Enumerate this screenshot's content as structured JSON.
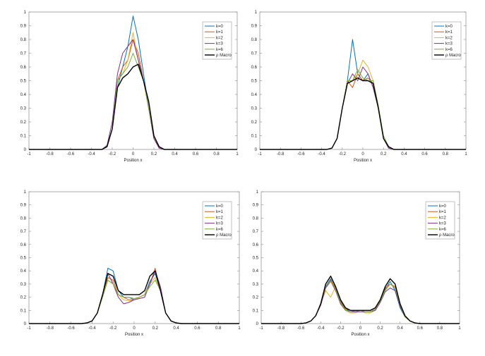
{
  "chart_data": [
    {
      "type": "line",
      "xlabel": "Position x",
      "ylabel": "",
      "xlim": [
        -1,
        1
      ],
      "ylim": [
        0,
        1
      ],
      "xticks": [
        -1,
        -0.8,
        -0.6,
        -0.4,
        -0.2,
        0,
        0.2,
        0.4,
        0.6,
        0.8,
        1
      ],
      "yticks": [
        0,
        0.1,
        0.2,
        0.3,
        0.4,
        0.5,
        0.6,
        0.7,
        0.8,
        0.9,
        1
      ],
      "legend": "top-right",
      "x": [
        -0.3,
        -0.25,
        -0.2,
        -0.15,
        -0.1,
        -0.05,
        0,
        0.05,
        0.1,
        0.15,
        0.2,
        0.25,
        0.3
      ],
      "series": [
        {
          "name": "k=0",
          "color": "#0072BD",
          "values": [
            0,
            0.02,
            0.15,
            0.45,
            0.6,
            0.75,
            0.97,
            0.8,
            0.55,
            0.3,
            0.08,
            0.01,
            0
          ]
        },
        {
          "name": "k=1",
          "color": "#D95319",
          "values": [
            0,
            0.02,
            0.15,
            0.5,
            0.6,
            0.65,
            0.8,
            0.7,
            0.5,
            0.3,
            0.08,
            0.01,
            0
          ]
        },
        {
          "name": "k=2",
          "color": "#EDB120",
          "values": [
            0,
            0.02,
            0.15,
            0.5,
            0.55,
            0.65,
            0.85,
            0.65,
            0.5,
            0.3,
            0.08,
            0.01,
            0
          ]
        },
        {
          "name": "k=3",
          "color": "#7E2F8E",
          "values": [
            0,
            0.03,
            0.2,
            0.55,
            0.7,
            0.75,
            0.8,
            0.65,
            0.5,
            0.3,
            0.08,
            0.01,
            0
          ]
        },
        {
          "name": "k=6",
          "color": "#77AC30",
          "values": [
            0,
            0.02,
            0.15,
            0.5,
            0.55,
            0.6,
            0.7,
            0.6,
            0.5,
            0.3,
            0.1,
            0.02,
            0
          ]
        },
        {
          "name": "ρ Macro",
          "color": "#000000",
          "values": [
            0,
            0.02,
            0.15,
            0.45,
            0.52,
            0.55,
            0.6,
            0.62,
            0.5,
            0.35,
            0.1,
            0.02,
            0
          ]
        }
      ]
    },
    {
      "type": "line",
      "xlabel": "Position x",
      "ylabel": "",
      "xlim": [
        -1,
        1
      ],
      "ylim": [
        0,
        1
      ],
      "xticks": [
        -1,
        -0.8,
        -0.6,
        -0.4,
        -0.2,
        0,
        0.2,
        0.4,
        0.6,
        0.8,
        1
      ],
      "yticks": [
        0,
        0.1,
        0.2,
        0.3,
        0.4,
        0.5,
        0.6,
        0.7,
        0.8,
        0.9,
        1
      ],
      "legend": "top-right",
      "x": [
        -0.35,
        -0.3,
        -0.25,
        -0.2,
        -0.15,
        -0.1,
        -0.05,
        0,
        0.05,
        0.1,
        0.15,
        0.2,
        0.25,
        0.3,
        0.35
      ],
      "series": [
        {
          "name": "k=0",
          "color": "#0072BD",
          "values": [
            0,
            0.01,
            0.08,
            0.3,
            0.5,
            0.8,
            0.55,
            0.5,
            0.55,
            0.45,
            0.3,
            0.08,
            0.01,
            0,
            0
          ]
        },
        {
          "name": "k=1",
          "color": "#D95319",
          "values": [
            0,
            0.01,
            0.08,
            0.3,
            0.5,
            0.45,
            0.55,
            0.5,
            0.52,
            0.48,
            0.3,
            0.08,
            0.01,
            0,
            0
          ]
        },
        {
          "name": "k=2",
          "color": "#EDB120",
          "values": [
            0,
            0.01,
            0.08,
            0.3,
            0.48,
            0.5,
            0.55,
            0.65,
            0.6,
            0.5,
            0.3,
            0.08,
            0.01,
            0,
            0
          ]
        },
        {
          "name": "k=3",
          "color": "#7E2F8E",
          "values": [
            0,
            0.01,
            0.08,
            0.3,
            0.48,
            0.55,
            0.5,
            0.6,
            0.55,
            0.45,
            0.3,
            0.08,
            0.01,
            0,
            0
          ]
        },
        {
          "name": "k=6",
          "color": "#77AC30",
          "values": [
            0,
            0.01,
            0.08,
            0.3,
            0.5,
            0.5,
            0.58,
            0.52,
            0.5,
            0.5,
            0.32,
            0.1,
            0.02,
            0,
            0
          ]
        },
        {
          "name": "ρ Macro",
          "color": "#000000",
          "values": [
            0,
            0.01,
            0.08,
            0.3,
            0.48,
            0.5,
            0.52,
            0.5,
            0.5,
            0.48,
            0.3,
            0.08,
            0.02,
            0,
            0
          ]
        }
      ]
    },
    {
      "type": "line",
      "xlabel": "Position x",
      "ylabel": "",
      "xlim": [
        -1,
        1
      ],
      "ylim": [
        0,
        1
      ],
      "xticks": [
        -1,
        -0.8,
        -0.6,
        -0.4,
        -0.2,
        0,
        0.2,
        0.4,
        0.6,
        0.8,
        1
      ],
      "yticks": [
        0,
        0.1,
        0.2,
        0.3,
        0.4,
        0.5,
        0.6,
        0.7,
        0.8,
        0.9,
        1
      ],
      "legend": "top-right",
      "x": [
        -0.5,
        -0.45,
        -0.4,
        -0.35,
        -0.3,
        -0.25,
        -0.2,
        -0.15,
        -0.1,
        -0.05,
        0,
        0.05,
        0.1,
        0.15,
        0.2,
        0.25,
        0.3,
        0.35,
        0.4,
        0.45,
        0.5
      ],
      "series": [
        {
          "name": "k=0",
          "color": "#0072BD",
          "values": [
            0,
            0.005,
            0.02,
            0.08,
            0.22,
            0.42,
            0.4,
            0.25,
            0.2,
            0.2,
            0.18,
            0.2,
            0.22,
            0.32,
            0.38,
            0.25,
            0.08,
            0.02,
            0.005,
            0,
            0
          ]
        },
        {
          "name": "k=1",
          "color": "#D95319",
          "values": [
            0,
            0.005,
            0.02,
            0.08,
            0.22,
            0.35,
            0.33,
            0.22,
            0.2,
            0.18,
            0.18,
            0.2,
            0.22,
            0.3,
            0.42,
            0.25,
            0.08,
            0.02,
            0.005,
            0,
            0
          ]
        },
        {
          "name": "k=2",
          "color": "#EDB120",
          "values": [
            0,
            0.005,
            0.02,
            0.08,
            0.22,
            0.33,
            0.3,
            0.22,
            0.18,
            0.17,
            0.18,
            0.2,
            0.22,
            0.3,
            0.35,
            0.25,
            0.08,
            0.02,
            0.005,
            0,
            0
          ]
        },
        {
          "name": "k=3",
          "color": "#7E2F8E",
          "values": [
            0,
            0.005,
            0.02,
            0.08,
            0.22,
            0.38,
            0.3,
            0.2,
            0.15,
            0.16,
            0.18,
            0.19,
            0.2,
            0.3,
            0.4,
            0.28,
            0.08,
            0.02,
            0.005,
            0,
            0
          ]
        },
        {
          "name": "k=6",
          "color": "#77AC30",
          "values": [
            0,
            0.005,
            0.02,
            0.08,
            0.2,
            0.33,
            0.3,
            0.22,
            0.2,
            0.2,
            0.19,
            0.2,
            0.22,
            0.28,
            0.33,
            0.25,
            0.08,
            0.02,
            0.005,
            0,
            0
          ]
        },
        {
          "name": "ρ Macro",
          "color": "#000000",
          "values": [
            0,
            0.005,
            0.02,
            0.08,
            0.22,
            0.38,
            0.36,
            0.25,
            0.22,
            0.22,
            0.22,
            0.22,
            0.25,
            0.36,
            0.4,
            0.25,
            0.08,
            0.02,
            0.005,
            0,
            0
          ]
        }
      ]
    },
    {
      "type": "line",
      "xlabel": "Position x",
      "ylabel": "",
      "xlim": [
        -1,
        1
      ],
      "ylim": [
        0,
        1
      ],
      "xticks": [
        -1,
        -0.8,
        -0.6,
        -0.4,
        -0.2,
        0,
        0.2,
        0.4,
        0.6,
        0.8,
        1
      ],
      "yticks": [
        0,
        0.1,
        0.2,
        0.3,
        0.4,
        0.5,
        0.6,
        0.7,
        0.8,
        0.9,
        1
      ],
      "legend": "top-right",
      "x": [
        -0.6,
        -0.55,
        -0.5,
        -0.45,
        -0.4,
        -0.35,
        -0.3,
        -0.25,
        -0.2,
        -0.15,
        -0.1,
        -0.05,
        0,
        0.05,
        0.1,
        0.15,
        0.2,
        0.25,
        0.3,
        0.35,
        0.4,
        0.45,
        0.5,
        0.55,
        0.6
      ],
      "series": [
        {
          "name": "k=0",
          "color": "#0072BD",
          "values": [
            0,
            0.005,
            0.02,
            0.06,
            0.15,
            0.28,
            0.34,
            0.26,
            0.16,
            0.11,
            0.09,
            0.09,
            0.1,
            0.09,
            0.09,
            0.11,
            0.17,
            0.26,
            0.32,
            0.25,
            0.12,
            0.05,
            0.02,
            0.005,
            0
          ]
        },
        {
          "name": "k=1",
          "color": "#D95319",
          "values": [
            0,
            0.005,
            0.02,
            0.06,
            0.14,
            0.27,
            0.33,
            0.27,
            0.17,
            0.11,
            0.1,
            0.09,
            0.1,
            0.1,
            0.1,
            0.12,
            0.18,
            0.27,
            0.3,
            0.28,
            0.14,
            0.05,
            0.02,
            0.005,
            0
          ]
        },
        {
          "name": "k=2",
          "color": "#EDB120",
          "values": [
            0,
            0.005,
            0.02,
            0.06,
            0.15,
            0.25,
            0.2,
            0.28,
            0.15,
            0.1,
            0.08,
            0.08,
            0.1,
            0.08,
            0.08,
            0.1,
            0.17,
            0.25,
            0.3,
            0.27,
            0.14,
            0.05,
            0.02,
            0.005,
            0
          ]
        },
        {
          "name": "k=3",
          "color": "#7E2F8E",
          "values": [
            0,
            0.005,
            0.02,
            0.06,
            0.14,
            0.27,
            0.32,
            0.25,
            0.15,
            0.1,
            0.09,
            0.09,
            0.09,
            0.09,
            0.09,
            0.1,
            0.16,
            0.24,
            0.27,
            0.25,
            0.13,
            0.05,
            0.02,
            0.005,
            0
          ]
        },
        {
          "name": "k=6",
          "color": "#77AC30",
          "values": [
            0,
            0.005,
            0.02,
            0.06,
            0.15,
            0.28,
            0.32,
            0.26,
            0.16,
            0.1,
            0.09,
            0.1,
            0.1,
            0.09,
            0.09,
            0.11,
            0.17,
            0.25,
            0.3,
            0.27,
            0.14,
            0.05,
            0.02,
            0.005,
            0
          ]
        },
        {
          "name": "ρ Macro",
          "color": "#000000",
          "values": [
            0,
            0.005,
            0.02,
            0.06,
            0.15,
            0.3,
            0.36,
            0.28,
            0.18,
            0.12,
            0.1,
            0.1,
            0.1,
            0.1,
            0.1,
            0.12,
            0.18,
            0.28,
            0.34,
            0.3,
            0.15,
            0.06,
            0.02,
            0.005,
            0
          ]
        }
      ]
    }
  ]
}
